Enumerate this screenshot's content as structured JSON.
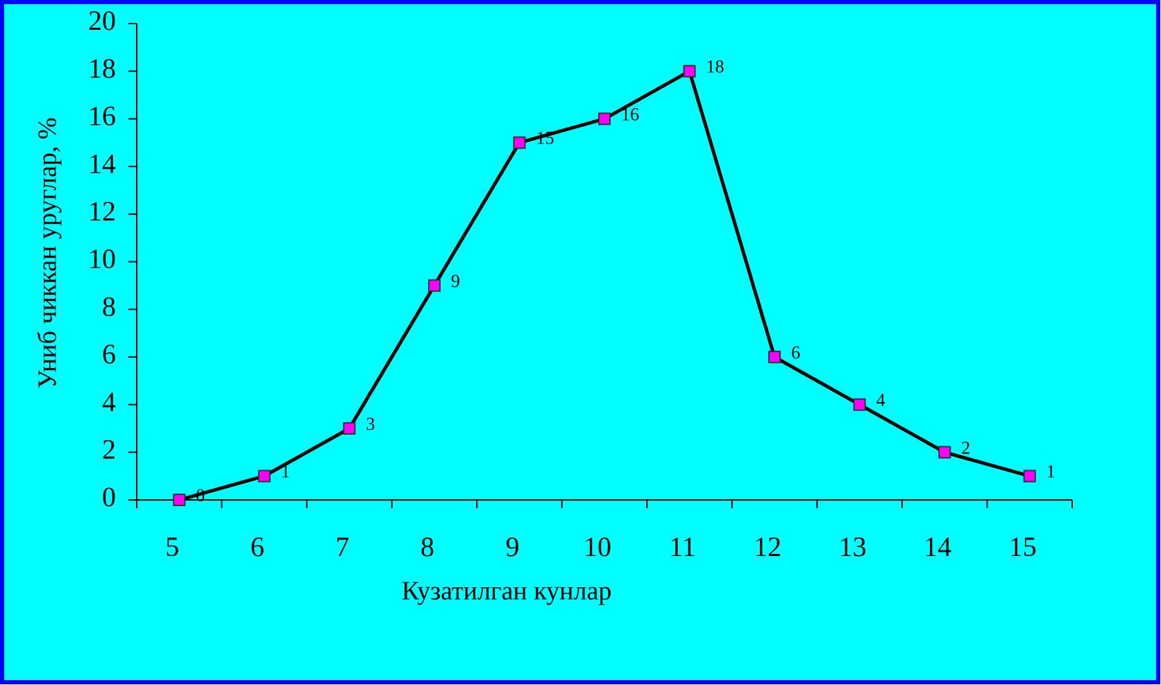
{
  "chart_data": {
    "type": "line",
    "x_label": "Кузатилган кунлар",
    "y_label": "Униб чиккан уруглар, %",
    "categories": [
      "5",
      "6",
      "7",
      "8",
      "9",
      "10",
      "11",
      "12",
      "13",
      "14",
      "15"
    ],
    "values": [
      0,
      1,
      3,
      9,
      15,
      16,
      18,
      6,
      4,
      2,
      1
    ],
    "color": "#000000",
    "marker_color": "#ff00ff",
    "ylim": [
      0,
      20
    ],
    "yticks": [
      0,
      2,
      4,
      6,
      8,
      10,
      12,
      14,
      16,
      18,
      20
    ],
    "grid": false,
    "data_labels": true
  }
}
